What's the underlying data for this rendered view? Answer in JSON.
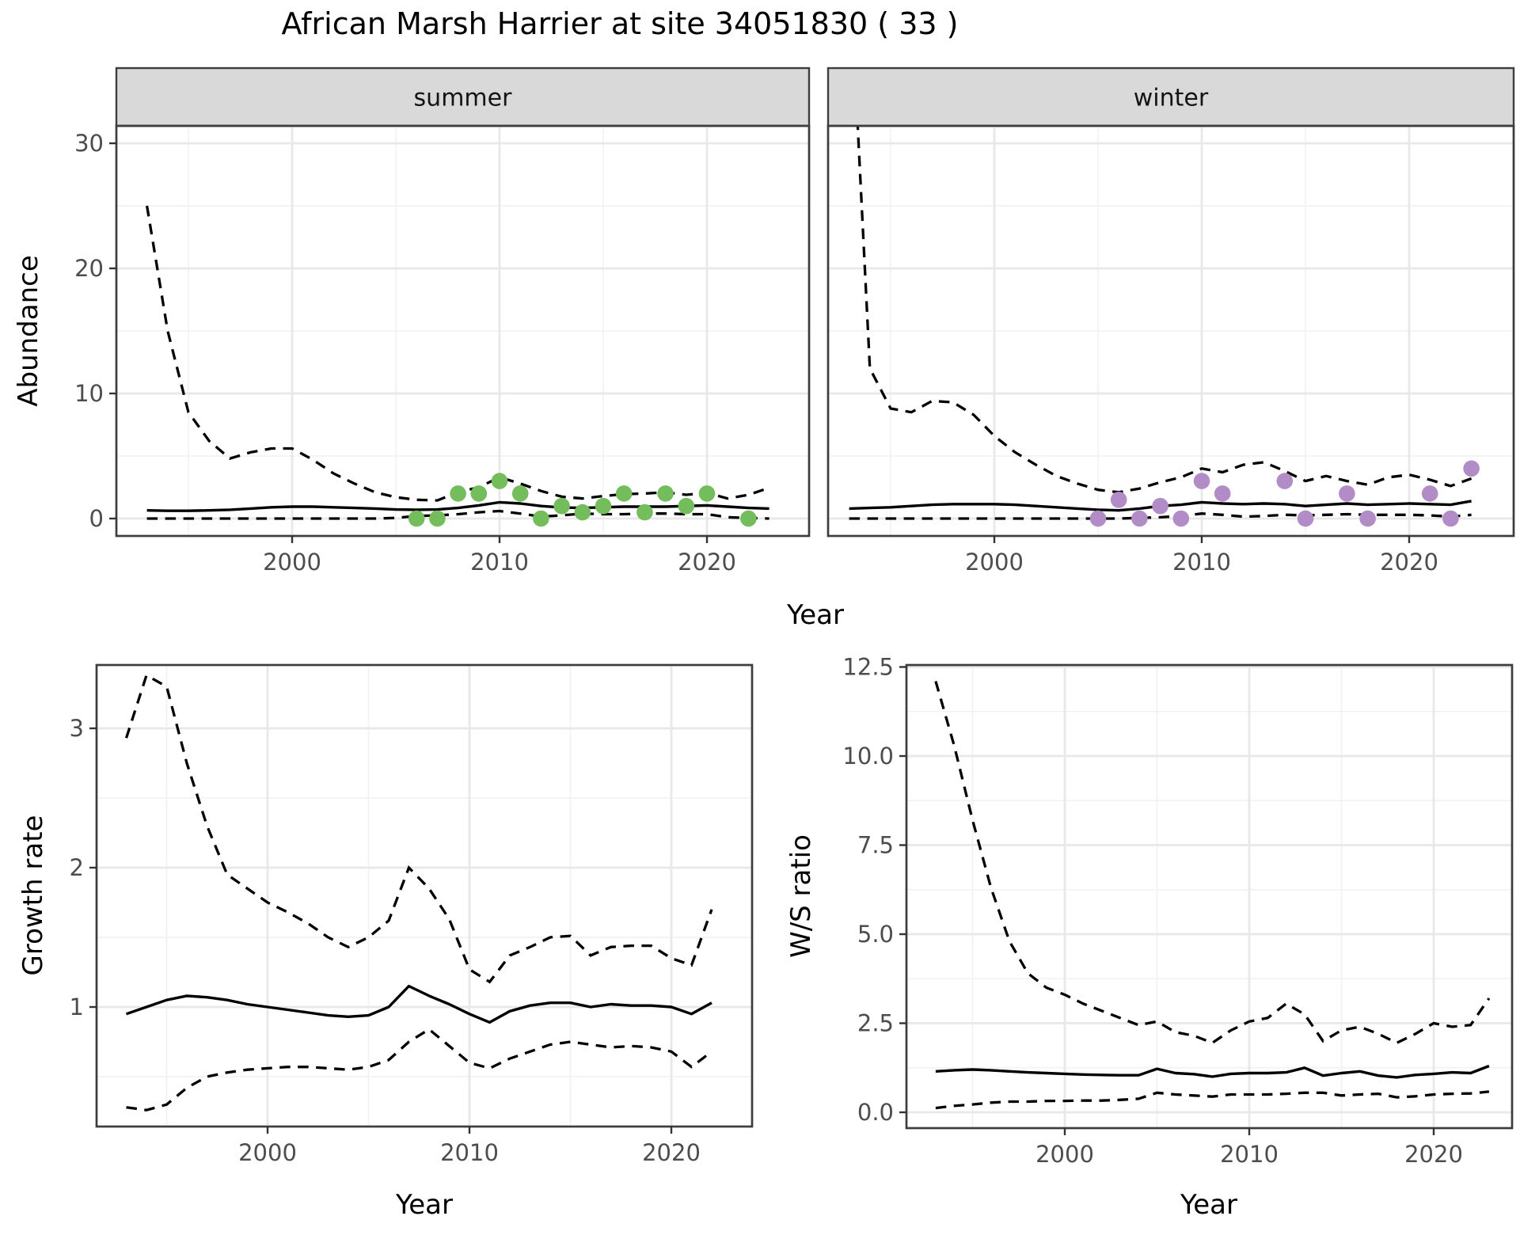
{
  "chart_data": {
    "type": "line",
    "title": "African Marsh Harrier at site 34051830 ( 33 )",
    "colors": {
      "summer_points": "#73bd5c",
      "winter_points": "#b28cc6",
      "median_line": "#000000",
      "ci_line": "#000000",
      "strip_fill": "#d9d9d9",
      "panel_border": "#3d3d3d",
      "grid_major": "#e8e8e8",
      "grid_minor": "#f1f1f1",
      "tick_label": "#4d4d4d"
    },
    "abundance": {
      "ylabel": "Abundance",
      "xlabel": "Year",
      "ytick_values": [
        0,
        10,
        20,
        30
      ],
      "ytick_labels": [
        "0",
        "10",
        "20",
        "30"
      ],
      "yminor": [
        5,
        15,
        25
      ],
      "xtick_values": [
        2000,
        2010,
        2020
      ],
      "xtick_labels": [
        "2000",
        "2010",
        "2020"
      ],
      "xminor": [
        1995,
        2005,
        2015
      ],
      "xlim": [
        1991.5,
        2025
      ],
      "ylim": [
        -1.4,
        31.4
      ],
      "years": [
        1993,
        1994,
        1995,
        1996,
        1997,
        1998,
        1999,
        2000,
        2001,
        2002,
        2003,
        2004,
        2005,
        2006,
        2007,
        2008,
        2009,
        2010,
        2011,
        2012,
        2013,
        2014,
        2015,
        2016,
        2017,
        2018,
        2019,
        2020,
        2021,
        2022,
        2023
      ],
      "facets": [
        {
          "label": "summer",
          "median": [
            0.65,
            0.62,
            0.62,
            0.65,
            0.7,
            0.8,
            0.9,
            0.95,
            0.95,
            0.9,
            0.85,
            0.8,
            0.72,
            0.7,
            0.72,
            0.85,
            1.05,
            1.3,
            1.2,
            1.0,
            0.88,
            0.85,
            0.9,
            0.95,
            0.95,
            0.95,
            1.0,
            1.05,
            0.95,
            0.85,
            0.8
          ],
          "ci_upper": [
            25,
            15,
            8.5,
            6.2,
            4.8,
            5.3,
            5.6,
            5.6,
            4.7,
            3.6,
            2.8,
            2.1,
            1.7,
            1.5,
            1.45,
            2.1,
            2.5,
            3.3,
            2.8,
            2.2,
            1.75,
            1.6,
            1.8,
            1.95,
            2.0,
            2.1,
            1.9,
            2.05,
            1.6,
            1.9,
            2.45
          ],
          "ci_lower": [
            0,
            0,
            0,
            0,
            0,
            0,
            0,
            0,
            0,
            0,
            0,
            0,
            0.05,
            0.2,
            0.25,
            0.35,
            0.5,
            0.6,
            0.4,
            0.15,
            0.25,
            0.4,
            0.35,
            0.35,
            0.4,
            0.4,
            0.35,
            0.35,
            0.1,
            0.05,
            0
          ],
          "obs_years": [
            2006,
            2007,
            2008,
            2009,
            2010,
            2011,
            2012,
            2013,
            2014,
            2015,
            2016,
            2017,
            2018,
            2019,
            2020,
            2022
          ],
          "obs_values": [
            0,
            0,
            2,
            2,
            3,
            2,
            0,
            1,
            0.5,
            1,
            2,
            0.5,
            2,
            1,
            2,
            0
          ]
        },
        {
          "label": "winter",
          "median": [
            0.8,
            0.85,
            0.9,
            1.0,
            1.1,
            1.15,
            1.15,
            1.15,
            1.1,
            1.0,
            0.9,
            0.8,
            0.7,
            0.65,
            0.8,
            1.0,
            1.1,
            1.3,
            1.2,
            1.15,
            1.2,
            1.15,
            1.0,
            1.1,
            1.2,
            1.1,
            1.15,
            1.2,
            1.15,
            1.1,
            1.4
          ],
          "ci_upper": [
            45,
            12,
            8.8,
            8.5,
            9.4,
            9.3,
            8.3,
            6.6,
            5.3,
            4.3,
            3.4,
            2.8,
            2.3,
            2.1,
            2.4,
            2.9,
            3.3,
            4.0,
            3.7,
            4.3,
            4.5,
            3.8,
            3.0,
            3.4,
            3.0,
            2.7,
            3.3,
            3.5,
            3.1,
            2.6,
            3.2
          ],
          "ci_lower": [
            0,
            0,
            0,
            0,
            0,
            0,
            0,
            0,
            0,
            0,
            0,
            0,
            0,
            0,
            0.05,
            0.1,
            0.2,
            0.4,
            0.3,
            0.15,
            0.2,
            0.3,
            0.25,
            0.3,
            0.35,
            0.3,
            0.3,
            0.3,
            0.25,
            0.15,
            0.3
          ],
          "obs_years": [
            2005,
            2006,
            2007,
            2008,
            2009,
            2010,
            2011,
            2014,
            2015,
            2017,
            2018,
            2021,
            2022,
            2023
          ],
          "obs_values": [
            0,
            1.5,
            0,
            1,
            0,
            3,
            2,
            3,
            0,
            2,
            0,
            2,
            0,
            4
          ]
        }
      ]
    },
    "growth_rate": {
      "ylabel": "Growth rate",
      "xlabel": "Year",
      "ytick_values": [
        1,
        2,
        3
      ],
      "ytick_labels": [
        "1",
        "2",
        "3"
      ],
      "yminor": [
        0.5,
        1.5,
        2.5,
        3.5
      ],
      "xtick_values": [
        2000,
        2010,
        2020
      ],
      "xtick_labels": [
        "2000",
        "2010",
        "2020"
      ],
      "xminor": [
        1995,
        2005,
        2015
      ],
      "xlim": [
        1991.5,
        2024.5
      ],
      "ylim": [
        0.1,
        3.45
      ],
      "years": [
        1993,
        1994,
        1995,
        1996,
        1997,
        1998,
        1999,
        2000,
        2001,
        2002,
        2003,
        2004,
        2005,
        2006,
        2007,
        2008,
        2009,
        2010,
        2011,
        2012,
        2013,
        2014,
        2015,
        2016,
        2017,
        2018,
        2019,
        2020,
        2021,
        2022
      ],
      "median": [
        0.95,
        1.0,
        1.05,
        1.08,
        1.07,
        1.05,
        1.02,
        1.0,
        0.98,
        0.96,
        0.94,
        0.93,
        0.94,
        1.0,
        1.15,
        1.08,
        1.02,
        0.95,
        0.89,
        0.97,
        1.01,
        1.03,
        1.03,
        1.0,
        1.02,
        1.01,
        1.01,
        1.0,
        0.95,
        1.03
      ],
      "ci_upper": [
        2.93,
        3.38,
        3.3,
        2.75,
        2.3,
        1.95,
        1.85,
        1.75,
        1.68,
        1.6,
        1.5,
        1.43,
        1.5,
        1.62,
        2.0,
        1.85,
        1.63,
        1.27,
        1.18,
        1.37,
        1.43,
        1.5,
        1.51,
        1.37,
        1.43,
        1.44,
        1.44,
        1.35,
        1.3,
        1.7
      ],
      "ci_lower": [
        0.28,
        0.26,
        0.3,
        0.42,
        0.5,
        0.53,
        0.55,
        0.56,
        0.57,
        0.57,
        0.56,
        0.55,
        0.57,
        0.62,
        0.75,
        0.84,
        0.72,
        0.6,
        0.56,
        0.63,
        0.68,
        0.73,
        0.75,
        0.73,
        0.71,
        0.72,
        0.71,
        0.68,
        0.57,
        0.68
      ]
    },
    "ws_ratio": {
      "ylabel": "W/S ratio",
      "xlabel": "Year",
      "ytick_values": [
        0,
        2.5,
        5,
        7.5,
        10,
        12.5
      ],
      "ytick_labels": [
        "0.0",
        "2.5",
        "5.0",
        "7.5",
        "10.0",
        "12.5"
      ],
      "yminor": [
        1.25,
        3.75,
        6.25,
        8.75,
        11.25
      ],
      "xtick_values": [
        2000,
        2010,
        2020
      ],
      "xtick_labels": [
        "2000",
        "2010",
        "2020"
      ],
      "xminor": [
        1995,
        2005,
        2015
      ],
      "xlim": [
        1991.4,
        2024.3
      ],
      "ylim": [
        -0.45,
        12.55
      ],
      "years": [
        1993,
        1994,
        1995,
        1996,
        1997,
        1998,
        1999,
        2000,
        2001,
        2002,
        2003,
        2004,
        2005,
        2006,
        2007,
        2008,
        2009,
        2010,
        2011,
        2012,
        2013,
        2014,
        2015,
        2016,
        2017,
        2018,
        2019,
        2020,
        2021,
        2022,
        2023
      ],
      "median": [
        1.15,
        1.18,
        1.2,
        1.18,
        1.15,
        1.12,
        1.1,
        1.08,
        1.06,
        1.05,
        1.04,
        1.04,
        1.22,
        1.1,
        1.07,
        1.0,
        1.08,
        1.1,
        1.1,
        1.12,
        1.25,
        1.03,
        1.1,
        1.15,
        1.03,
        0.98,
        1.05,
        1.08,
        1.12,
        1.1,
        1.3
      ],
      "ci_upper": [
        12.1,
        10.3,
        8.2,
        6.3,
        4.8,
        3.9,
        3.5,
        3.3,
        3.05,
        2.85,
        2.65,
        2.45,
        2.55,
        2.25,
        2.15,
        1.95,
        2.3,
        2.55,
        2.65,
        3.05,
        2.75,
        2.0,
        2.3,
        2.4,
        2.2,
        1.95,
        2.2,
        2.5,
        2.4,
        2.45,
        3.2
      ],
      "ci_lower": [
        0.12,
        0.18,
        0.22,
        0.27,
        0.3,
        0.3,
        0.32,
        0.32,
        0.33,
        0.33,
        0.35,
        0.38,
        0.55,
        0.5,
        0.47,
        0.44,
        0.5,
        0.5,
        0.5,
        0.52,
        0.55,
        0.55,
        0.47,
        0.5,
        0.52,
        0.42,
        0.45,
        0.5,
        0.52,
        0.53,
        0.58
      ]
    }
  }
}
